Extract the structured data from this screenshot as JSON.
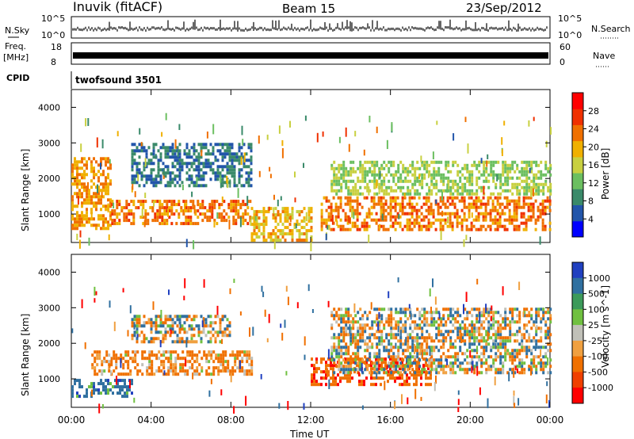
{
  "header": {
    "title": "Inuvik (fitACF)",
    "beam": "Beam 15",
    "date": "23/Sep/2012"
  },
  "top_panels": {
    "nsky_label": "N.Sky",
    "nsky_ticks": [
      "10^5",
      "10^0"
    ],
    "nsearch_label": "N.Search",
    "freq_label_line1": "Freq.",
    "freq_label_line2": "[MHz]",
    "freq_ticks": [
      "18",
      "8"
    ],
    "nave_label": "Nave",
    "nave_ticks": [
      "60",
      "0"
    ],
    "cpid_label": "CPID",
    "cpid_value": "twofsound 3501"
  },
  "colors": {
    "power_scale": [
      "#0000ff",
      "#2255aa",
      "#3a8a6a",
      "#6bbf60",
      "#c8d040",
      "#f0b000",
      "#f07000",
      "#f03000",
      "#ff0000"
    ],
    "velocity_scale": [
      "#2040c0",
      "#3070a0",
      "#3c9a5a",
      "#70c040",
      "#c0c0b8",
      "#f0a040",
      "#f07000",
      "#f04000",
      "#ff0000"
    ]
  },
  "chart_data": [
    {
      "type": "heatmap",
      "name": "power",
      "ylabel": "Slant Range [km]",
      "ylim": [
        200,
        4500
      ],
      "y_ticks": [
        1000,
        2000,
        3000,
        4000
      ],
      "xlim": [
        "00:00",
        "24:00"
      ],
      "colorbar_label": "Power [dB]",
      "colorbar_ticks": [
        "4",
        "8",
        "12",
        "16",
        "20",
        "24",
        "28"
      ],
      "colorbar_range": [
        0,
        32
      ],
      "features": [
        {
          "x_start": 0.0,
          "x_end": 2.0,
          "y_low": 600,
          "y_high": 2600,
          "level": 26
        },
        {
          "x_start": 2.0,
          "x_end": 9.0,
          "y_low": 700,
          "y_high": 1400,
          "level": 28
        },
        {
          "x_start": 9.0,
          "x_end": 12.0,
          "y_low": 300,
          "y_high": 1200,
          "level": 24
        },
        {
          "x_start": 12.5,
          "x_end": 24.0,
          "y_low": 600,
          "y_high": 1500,
          "level": 28
        },
        {
          "x_start": 13.0,
          "x_end": 24.0,
          "y_low": 1600,
          "y_high": 2500,
          "level": 18
        },
        {
          "x_start": 3.0,
          "x_end": 9.0,
          "y_low": 1800,
          "y_high": 3000,
          "level": 10
        }
      ]
    },
    {
      "type": "heatmap",
      "name": "velocity",
      "ylabel": "Slant Range [km]",
      "ylim": [
        200,
        4500
      ],
      "y_ticks": [
        1000,
        2000,
        3000,
        4000
      ],
      "xlabel": "Time UT",
      "x_ticks": [
        "00:00",
        "04:00",
        "08:00",
        "12:00",
        "16:00",
        "20:00",
        "00:00"
      ],
      "colorbar_label": "Velocity [m s^-1]",
      "colorbar_ticks": [
        "1000",
        "500",
        "100",
        "25",
        "-25",
        "-100",
        "-500",
        "-1000"
      ],
      "features": [
        {
          "x_start": 0.0,
          "x_end": 3.0,
          "y_low": 500,
          "y_high": 1000,
          "value": 300
        },
        {
          "x_start": 1.0,
          "x_end": 9.0,
          "y_low": 1100,
          "y_high": 1800,
          "value": -200
        },
        {
          "x_start": 3.0,
          "x_end": 8.0,
          "y_low": 2000,
          "y_high": 2800,
          "value": 0
        },
        {
          "x_start": 12.0,
          "x_end": 18.0,
          "y_low": 800,
          "y_high": 1600,
          "value": -400
        },
        {
          "x_start": 13.0,
          "x_end": 24.0,
          "y_low": 1200,
          "y_high": 3000,
          "value": 0
        }
      ]
    }
  ]
}
